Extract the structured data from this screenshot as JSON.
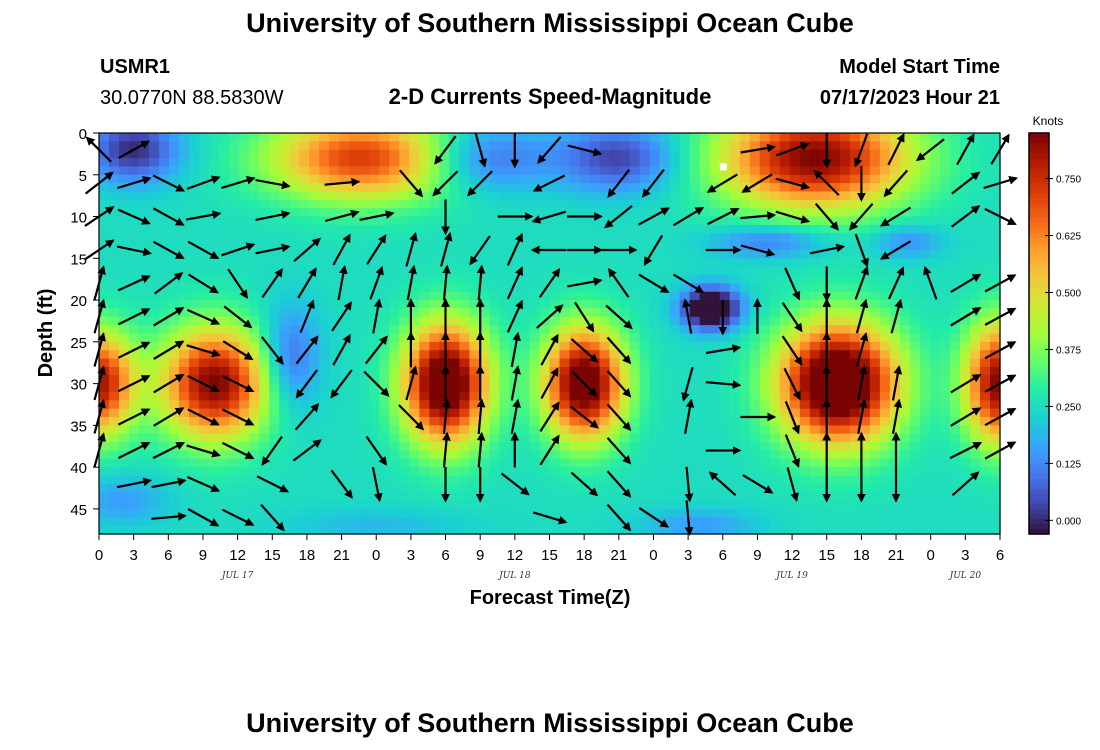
{
  "header": {
    "title": "University of Southern Mississippi Ocean Cube",
    "station_id": "USMR1",
    "coordinates": "30.0770N  88.5830W",
    "plot_title": "2-D Currents Speed-Magnitude",
    "model_label": "Model Start Time",
    "model_time": "07/17/2023 Hour 21"
  },
  "footer": {
    "title": "University of Southern Mississippi Ocean Cube"
  },
  "chart_data": {
    "type": "heatmap",
    "title": "2-D Currents Speed-Magnitude",
    "xlabel": "Forecast Time(Z)",
    "ylabel": "Depth (ft)",
    "x_ticks": [
      "0",
      "3",
      "6",
      "9",
      "12",
      "15",
      "18",
      "21",
      "0",
      "3",
      "6",
      "9",
      "12",
      "15",
      "18",
      "21",
      "0",
      "3",
      "6",
      "9",
      "12",
      "15",
      "18",
      "21",
      "0",
      "3",
      "6"
    ],
    "y_ticks": [
      "0",
      "5",
      "10",
      "15",
      "20",
      "25",
      "30",
      "35",
      "40",
      "45"
    ],
    "ylim": [
      0,
      48
    ],
    "xlim_hours": [
      0,
      78
    ],
    "date_labels": [
      {
        "text": "JUL 17",
        "hour": 12
      },
      {
        "text": "JUL 18",
        "hour": 36
      },
      {
        "text": "JUL 19",
        "hour": 60
      },
      {
        "text": "JUL 20",
        "hour": 75
      }
    ],
    "colorbar": {
      "unit": "Knots",
      "ticks": [
        "0.750",
        "0.625",
        "0.500",
        "0.375",
        "0.250",
        "0.125",
        "0.000"
      ],
      "tick_values": [
        0.75,
        0.625,
        0.5,
        0.375,
        0.25,
        0.125,
        0.0
      ],
      "min": -0.03,
      "max": 0.85
    },
    "colormap": [
      "#30123b",
      "#4145ab",
      "#4675ed",
      "#39a2fc",
      "#1bcfd4",
      "#24eca6",
      "#61fc6c",
      "#a4fc3b",
      "#d1e834",
      "#f3c63a",
      "#fe9b2d",
      "#f36315",
      "#d93806",
      "#b11901",
      "#7a0402"
    ],
    "speed_features": [
      {
        "x": 23,
        "y": 3,
        "sx": 8,
        "sy": 5,
        "v": 0.48
      },
      {
        "x": 62,
        "y": 3,
        "sx": 8,
        "sy": 6,
        "v": 0.6
      },
      {
        "x": 33,
        "y": 3,
        "sx": 6,
        "sy": 4,
        "v": -0.2
      },
      {
        "x": 45,
        "y": 3,
        "sx": 5,
        "sy": 4,
        "v": -0.22
      },
      {
        "x": 3,
        "y": 2,
        "sx": 4,
        "sy": 4,
        "v": -0.25
      },
      {
        "x": 10,
        "y": 30,
        "sx": 4.5,
        "sy": 6.5,
        "v": 0.6
      },
      {
        "x": 0,
        "y": 30,
        "sx": 3,
        "sy": 6,
        "v": 0.55
      },
      {
        "x": 30,
        "y": 30,
        "sx": 3.6,
        "sy": 7,
        "v": 0.72
      },
      {
        "x": 42,
        "y": 30,
        "sx": 3.4,
        "sy": 6.5,
        "v": 0.68
      },
      {
        "x": 64,
        "y": 30,
        "sx": 5,
        "sy": 7,
        "v": 0.78
      },
      {
        "x": 78,
        "y": 30,
        "sx": 3,
        "sy": 7,
        "v": 0.6
      },
      {
        "x": 16.5,
        "y": 27,
        "sx": 2.5,
        "sy": 6,
        "v": -0.18
      },
      {
        "x": 53,
        "y": 21,
        "sx": 2.5,
        "sy": 2.5,
        "v": -0.42
      },
      {
        "x": 58,
        "y": 13,
        "sx": 5,
        "sy": 2,
        "v": -0.15
      },
      {
        "x": 70,
        "y": 13,
        "sx": 3,
        "sy": 2,
        "v": -0.12
      },
      {
        "x": 2,
        "y": 44,
        "sx": 4,
        "sy": 3,
        "v": -0.1
      },
      {
        "x": 24,
        "y": 47,
        "sx": 8,
        "sy": 2,
        "v": -0.06
      },
      {
        "x": 52,
        "y": 47,
        "sx": 5,
        "sy": 2,
        "v": -0.1
      }
    ],
    "speed_baseline": 0.25,
    "vectors": [
      [
        [
          -40,
          -40
        ],
        [
          45,
          -25
        ],
        [
          0,
          0
        ],
        [
          0,
          0
        ],
        [
          0,
          0
        ],
        [
          0,
          0
        ],
        [
          0,
          0
        ],
        [
          0,
          0
        ],
        [
          0,
          0
        ],
        [
          0,
          0
        ],
        [
          -30,
          40
        ],
        [
          15,
          55
        ],
        [
          0,
          55
        ],
        [
          -35,
          40
        ],
        [
          40,
          10
        ],
        [
          0,
          0
        ],
        [
          0,
          0
        ],
        [
          0,
          0
        ],
        [
          0,
          0
        ],
        [
          60,
          -10
        ],
        [
          55,
          -20
        ],
        [
          0,
          60
        ],
        [
          -20,
          55
        ],
        [
          30,
          -60
        ],
        [
          -45,
          35
        ],
        [
          25,
          -45
        ],
        [
          30,
          -50
        ]
      ],
      [
        [
          45,
          -35
        ],
        [
          50,
          -15
        ],
        [
          50,
          25
        ],
        [
          55,
          -20
        ],
        [
          50,
          -15
        ],
        [
          55,
          10
        ],
        [
          0,
          0
        ],
        [
          55,
          -5
        ],
        [
          0,
          0
        ],
        [
          30,
          35
        ],
        [
          -30,
          30
        ],
        [
          -30,
          30
        ],
        [
          0,
          0
        ],
        [
          -40,
          20
        ],
        [
          0,
          0
        ],
        [
          -35,
          45
        ],
        [
          -35,
          45
        ],
        [
          0,
          0
        ],
        [
          -50,
          30
        ],
        [
          -50,
          30
        ],
        [
          55,
          15
        ],
        [
          -35,
          -35
        ],
        [
          0,
          55
        ],
        [
          -40,
          45
        ],
        [
          0,
          0
        ],
        [
          45,
          -35
        ],
        [
          50,
          -15
        ]
      ],
      [
        [
          45,
          -30
        ],
        [
          45,
          20
        ],
        [
          45,
          25
        ],
        [
          55,
          -10
        ],
        [
          0,
          0
        ],
        [
          50,
          -10
        ],
        [
          0,
          0
        ],
        [
          55,
          -15
        ],
        [
          50,
          -10
        ],
        [
          0,
          0
        ],
        [
          0,
          55
        ],
        [
          0,
          0
        ],
        [
          55,
          0
        ],
        [
          -50,
          15
        ],
        [
          55,
          0
        ],
        [
          -50,
          40
        ],
        [
          55,
          -30
        ],
        [
          50,
          -30
        ],
        [
          50,
          -25
        ],
        [
          55,
          -5
        ],
        [
          50,
          15
        ],
        [
          30,
          35
        ],
        [
          -35,
          40
        ],
        [
          -40,
          25
        ],
        [
          0,
          0
        ],
        [
          40,
          -30
        ],
        [
          50,
          25
        ]
      ],
      [
        [
          45,
          -30
        ],
        [
          50,
          10
        ],
        [
          45,
          25
        ],
        [
          45,
          25
        ],
        [
          45,
          -15
        ],
        [
          50,
          -10
        ],
        [
          40,
          -35
        ],
        [
          30,
          -55
        ],
        [
          35,
          -55
        ],
        [
          15,
          -55
        ],
        [
          15,
          -55
        ],
        [
          -35,
          50
        ],
        [
          25,
          -55
        ],
        [
          -55,
          0
        ],
        [
          55,
          0
        ],
        [
          55,
          0
        ],
        [
          -30,
          50
        ],
        [
          0,
          0
        ],
        [
          55,
          0
        ],
        [
          55,
          15
        ],
        [
          0,
          0
        ],
        [
          50,
          -10
        ],
        [
          20,
          55
        ],
        [
          -50,
          30
        ],
        [
          0,
          0
        ],
        [
          0,
          0
        ],
        [
          0,
          0
        ]
      ],
      [
        [
          15,
          -55
        ],
        [
          55,
          -25
        ],
        [
          40,
          -30
        ],
        [
          40,
          25
        ],
        [
          30,
          45
        ],
        [
          35,
          -50
        ],
        [
          30,
          -50
        ],
        [
          10,
          -55
        ],
        [
          20,
          -55
        ],
        [
          10,
          -55
        ],
        [
          5,
          -55
        ],
        [
          5,
          -55
        ],
        [
          25,
          -55
        ],
        [
          35,
          -50
        ],
        [
          55,
          -10
        ],
        [
          -35,
          -50
        ],
        [
          50,
          30
        ],
        [
          50,
          30
        ],
        [
          0,
          0
        ],
        [
          0,
          0
        ],
        [
          20,
          45
        ],
        [
          0,
          55
        ],
        [
          20,
          -55
        ],
        [
          25,
          -55
        ],
        [
          -20,
          -55
        ],
        [
          50,
          -30
        ],
        [
          55,
          -30
        ]
      ],
      [
        [
          15,
          -55
        ],
        [
          50,
          -25
        ],
        [
          50,
          -30
        ],
        [
          45,
          20
        ],
        [
          45,
          35
        ],
        [
          0,
          0
        ],
        [
          20,
          -50
        ],
        [
          30,
          -45
        ],
        [
          10,
          -55
        ],
        [
          0,
          -55
        ],
        [
          0,
          -55
        ],
        [
          0,
          -55
        ],
        [
          25,
          -55
        ],
        [
          45,
          -40
        ],
        [
          35,
          55
        ],
        [
          45,
          40
        ],
        [
          0,
          0
        ],
        [
          -10,
          -55
        ],
        [
          0,
          55
        ],
        [
          0,
          -55
        ],
        [
          30,
          45
        ],
        [
          0,
          -55
        ],
        [
          15,
          -55
        ],
        [
          15,
          -55
        ],
        [
          0,
          0
        ],
        [
          50,
          -30
        ],
        [
          55,
          -30
        ]
      ],
      [
        [
          15,
          -55
        ],
        [
          50,
          -25
        ],
        [
          50,
          -30
        ],
        [
          50,
          15
        ],
        [
          40,
          25
        ],
        [
          35,
          45
        ],
        [
          35,
          -45
        ],
        [
          25,
          -45
        ],
        [
          35,
          -45
        ],
        [
          0,
          -55
        ],
        [
          0,
          -55
        ],
        [
          0,
          -55
        ],
        [
          10,
          -55
        ],
        [
          30,
          -55
        ],
        [
          45,
          40
        ],
        [
          40,
          45
        ],
        [
          0,
          0
        ],
        [
          0,
          0
        ],
        [
          30,
          -5
        ],
        [
          0,
          0
        ],
        [
          30,
          45
        ],
        [
          0,
          -55
        ],
        [
          15,
          -55
        ],
        [
          0,
          0
        ],
        [
          0,
          0
        ],
        [
          0,
          0
        ],
        [
          55,
          -30
        ]
      ],
      [
        [
          15,
          -55
        ],
        [
          50,
          -25
        ],
        [
          50,
          -30
        ],
        [
          50,
          25
        ],
        [
          50,
          25
        ],
        [
          0,
          0
        ],
        [
          -30,
          40
        ],
        [
          -30,
          40
        ],
        [
          40,
          40
        ],
        [
          15,
          -55
        ],
        [
          0,
          -55
        ],
        [
          0,
          -55
        ],
        [
          10,
          -55
        ],
        [
          30,
          -55
        ],
        [
          40,
          40
        ],
        [
          40,
          45
        ],
        [
          0,
          0
        ],
        [
          -15,
          55
        ],
        [
          55,
          5
        ],
        [
          0,
          0
        ],
        [
          25,
          50
        ],
        [
          0,
          -55
        ],
        [
          10,
          -55
        ],
        [
          10,
          -55
        ],
        [
          0,
          0
        ],
        [
          50,
          -30
        ],
        [
          55,
          -30
        ]
      ],
      [
        [
          15,
          -55
        ],
        [
          50,
          -25
        ],
        [
          50,
          -30
        ],
        [
          50,
          25
        ],
        [
          50,
          25
        ],
        [
          0,
          0
        ],
        [
          40,
          -45
        ],
        [
          0,
          0
        ],
        [
          0,
          0
        ],
        [
          40,
          40
        ],
        [
          5,
          -55
        ],
        [
          5,
          -55
        ],
        [
          10,
          -55
        ],
        [
          35,
          -55
        ],
        [
          45,
          35
        ],
        [
          40,
          45
        ],
        [
          0,
          0
        ],
        [
          10,
          -55
        ],
        [
          0,
          0
        ],
        [
          55,
          0
        ],
        [
          20,
          50
        ],
        [
          0,
          -55
        ],
        [
          10,
          -55
        ],
        [
          10,
          -55
        ],
        [
          0,
          0
        ],
        [
          50,
          -30
        ],
        [
          55,
          -30
        ]
      ],
      [
        [
          15,
          -55
        ],
        [
          50,
          -25
        ],
        [
          50,
          -25
        ],
        [
          50,
          15
        ],
        [
          50,
          25
        ],
        [
          -35,
          50
        ],
        [
          40,
          -30
        ],
        [
          0,
          0
        ],
        [
          35,
          50
        ],
        [
          0,
          0
        ],
        [
          5,
          -55
        ],
        [
          5,
          -55
        ],
        [
          0,
          -55
        ],
        [
          35,
          -55
        ],
        [
          0,
          0
        ],
        [
          40,
          45
        ],
        [
          0,
          0
        ],
        [
          0,
          0
        ],
        [
          55,
          0
        ],
        [
          0,
          0
        ],
        [
          20,
          50
        ],
        [
          0,
          -55
        ],
        [
          0,
          -55
        ],
        [
          0,
          -55
        ],
        [
          0,
          0
        ],
        [
          50,
          -25
        ],
        [
          55,
          -30
        ]
      ],
      [
        [
          0,
          0
        ],
        [
          50,
          -10
        ],
        [
          50,
          -10
        ],
        [
          45,
          20
        ],
        [
          0,
          0
        ],
        [
          50,
          25
        ],
        [
          0,
          0
        ],
        [
          30,
          40
        ],
        [
          10,
          50
        ],
        [
          0,
          0
        ],
        [
          0,
          55
        ],
        [
          0,
          55
        ],
        [
          45,
          35
        ],
        [
          0,
          0
        ],
        [
          45,
          40
        ],
        [
          40,
          45
        ],
        [
          0,
          0
        ],
        [
          5,
          55
        ],
        [
          -45,
          -40
        ],
        [
          50,
          30
        ],
        [
          15,
          55
        ],
        [
          0,
          55
        ],
        [
          0,
          55
        ],
        [
          0,
          55
        ],
        [
          0,
          0
        ],
        [
          45,
          -40
        ],
        [
          0,
          0
        ]
      ],
      [
        [
          0,
          0
        ],
        [
          0,
          0
        ],
        [
          55,
          -5
        ],
        [
          45,
          25
        ],
        [
          50,
          25
        ],
        [
          40,
          45
        ],
        [
          0,
          0
        ],
        [
          0,
          0
        ],
        [
          0,
          0
        ],
        [
          0,
          0
        ],
        [
          0,
          0
        ],
        [
          0,
          0
        ],
        [
          0,
          0
        ],
        [
          50,
          15
        ],
        [
          0,
          0
        ],
        [
          40,
          45
        ],
        [
          45,
          30
        ],
        [
          5,
          55
        ],
        [
          0,
          0
        ],
        [
          0,
          0
        ],
        [
          0,
          0
        ],
        [
          0,
          0
        ],
        [
          0,
          0
        ],
        [
          0,
          0
        ],
        [
          0,
          0
        ],
        [
          0,
          0
        ],
        [
          0,
          0
        ]
      ]
    ]
  }
}
